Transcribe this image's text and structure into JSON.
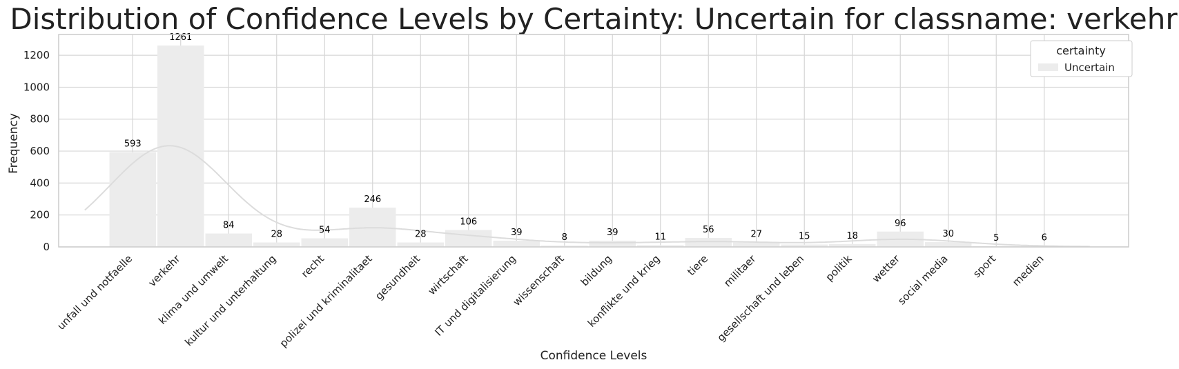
{
  "chart_data": {
    "type": "bar",
    "title": "Distribution of Confidence Levels by Certainty: Uncertain for classname: verkehr",
    "xlabel": "Confidence Levels",
    "ylabel": "Frequency",
    "ylim": [
      0,
      1330
    ],
    "yticks": [
      0,
      200,
      400,
      600,
      800,
      1000,
      1200
    ],
    "grid": true,
    "categories": [
      "unfall und notfaelle",
      "verkehr",
      "klima und umwelt",
      "kultur und unterhaltung",
      "recht",
      "polizei und kriminalitaet",
      "gesundheit",
      "wirtschaft",
      "IT und digitalisierung",
      "wissenschaft",
      "bildung",
      "konflikte und krieg",
      "tiere",
      "militaer",
      "gesellschaft und leben",
      "politik",
      "wetter",
      "social media",
      "sport",
      "medien"
    ],
    "series": [
      {
        "name": "Uncertain",
        "color": "#ececec",
        "values": [
          593,
          1261,
          84,
          28,
          54,
          246,
          28,
          106,
          39,
          8,
          39,
          11,
          56,
          27,
          15,
          18,
          96,
          30,
          5,
          6
        ]
      }
    ],
    "kde_line": true,
    "kde_color": "#dcdcdc",
    "legend": {
      "title": "certainty",
      "placement": "top-right",
      "entries": [
        "Uncertain"
      ]
    }
  }
}
